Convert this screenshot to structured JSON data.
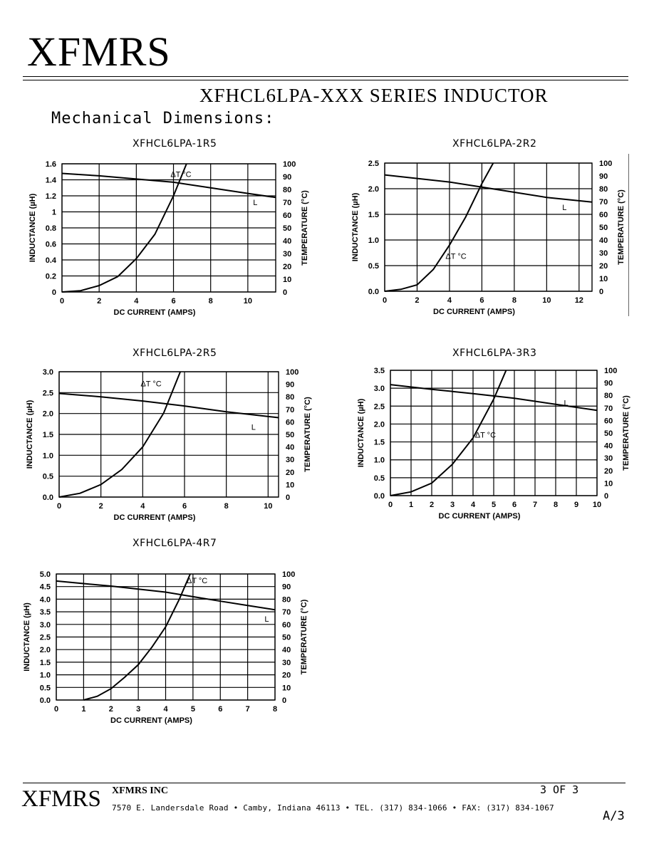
{
  "header": {
    "logo": "XFMRS",
    "series_title": "XFHCL6LPA-XXX SERIES INDUCTOR",
    "section_title": "Mechanical Dimensions:"
  },
  "footer": {
    "logo": "XFMRS",
    "company": "XFMRS INC",
    "address": "7570 E. Landersdale Road • Camby, Indiana 46113 • TEL. (317) 834-1066 • FAX: (317) 834-1067",
    "page": "3 OF 3",
    "revision": "A/3"
  },
  "chart_data": [
    {
      "type": "line",
      "title": "XFHCL6LPA-1R5",
      "xlabel": "DC CURRENT (AMPS)",
      "ylabel": "INDUCTANCE (µH)",
      "y2label": "TEMPERATURE (°C)",
      "xlim": [
        0,
        11.5
      ],
      "ylim": [
        0,
        1.6
      ],
      "y2lim": [
        0,
        100
      ],
      "xticks": [
        0,
        2,
        4,
        6,
        8,
        10
      ],
      "xtick_labels": [
        "0",
        "2",
        "4",
        "6",
        "8",
        "10"
      ],
      "yticks": [
        0,
        0.2,
        0.4,
        0.6,
        0.8,
        1,
        1.2,
        1.4,
        1.6
      ],
      "ytick_labels": [
        "0",
        "0.2",
        "0.4",
        "0.6",
        "0.8",
        "1",
        "1.2",
        "1.4",
        "1.6"
      ],
      "y2ticks": [
        0,
        10,
        20,
        30,
        40,
        50,
        60,
        70,
        80,
        90,
        100
      ],
      "y2tick_labels": [
        "0",
        "10",
        "20",
        "30",
        "40",
        "50",
        "60",
        "70",
        "80",
        "90",
        "100"
      ],
      "grid": true,
      "series": [
        {
          "name": "L",
          "axis": "left",
          "x": [
            0,
            2,
            4,
            6,
            8,
            10,
            11.5
          ],
          "y": [
            1.48,
            1.45,
            1.41,
            1.37,
            1.3,
            1.23,
            1.18
          ]
        },
        {
          "name": "ΔT °C",
          "axis": "right",
          "x": [
            0,
            1,
            2,
            3,
            4,
            5,
            6,
            6.7
          ],
          "y": [
            0,
            1,
            5,
            12,
            26,
            45,
            75,
            100
          ]
        }
      ],
      "labels": [
        {
          "text": "ΔT °C",
          "x": 6.4,
          "y2": 92
        },
        {
          "text": "L",
          "x": 10.4,
          "y": 1.12
        }
      ]
    },
    {
      "type": "line",
      "title": "XFHCL6LPA-2R2",
      "xlabel": "DC CURRENT (AMPS)",
      "ylabel": "INDUCTANCE (µH)",
      "y2label": "TEMPERATURE (°C)",
      "xlim": [
        0,
        12.8
      ],
      "ylim": [
        0,
        2.5
      ],
      "y2lim": [
        0,
        100
      ],
      "xticks": [
        0,
        2,
        4,
        6,
        8,
        10,
        12
      ],
      "xtick_labels": [
        "0",
        "2",
        "4",
        "6",
        "8",
        "10",
        "12"
      ],
      "yticks": [
        0,
        0.5,
        1.0,
        1.5,
        2.0,
        2.5
      ],
      "ytick_labels": [
        "0.0",
        "0.5",
        "1.0",
        "1.5",
        "2.0",
        "2.5"
      ],
      "y2ticks": [
        0,
        10,
        20,
        30,
        40,
        50,
        60,
        70,
        80,
        90,
        100
      ],
      "y2tick_labels": [
        "0",
        "10",
        "20",
        "30",
        "40",
        "50",
        "60",
        "70",
        "80",
        "90",
        "100"
      ],
      "grid": true,
      "series": [
        {
          "name": "L",
          "axis": "left",
          "x": [
            0,
            2,
            4,
            6,
            8,
            10,
            12.8
          ],
          "y": [
            2.27,
            2.2,
            2.13,
            2.03,
            1.93,
            1.83,
            1.74
          ]
        },
        {
          "name": "ΔT °C",
          "axis": "right",
          "x": [
            0,
            1,
            2,
            3,
            4,
            5,
            6,
            6.7
          ],
          "y": [
            0,
            1.5,
            5,
            17,
            36,
            58,
            84,
            100
          ]
        }
      ],
      "labels": [
        {
          "text": "ΔT °C",
          "x": 4.4,
          "y": 0.69
        },
        {
          "text": "L",
          "x": 11.1,
          "y": 1.64
        }
      ]
    },
    {
      "type": "line",
      "title": "XFHCL6LPA-2R5",
      "xlabel": "DC CURRENT (AMPS)",
      "ylabel": "INDUCTANCE (µH)",
      "y2label": "TEMPERATURE (°C)",
      "xlim": [
        0,
        10.5
      ],
      "ylim": [
        0,
        3.0
      ],
      "y2lim": [
        0,
        100
      ],
      "xticks": [
        0,
        2,
        4,
        6,
        8,
        10
      ],
      "xtick_labels": [
        "0",
        "2",
        "4",
        "6",
        "8",
        "10"
      ],
      "yticks": [
        0,
        0.5,
        1.0,
        1.5,
        2.0,
        2.5,
        3.0
      ],
      "ytick_labels": [
        "0.0",
        "0.5",
        "1.0",
        "1.5",
        "2.0",
        "2.5",
        "3.0"
      ],
      "y2ticks": [
        0,
        10,
        20,
        30,
        40,
        50,
        60,
        70,
        80,
        90,
        100
      ],
      "y2tick_labels": [
        "0",
        "10",
        "20",
        "30",
        "40",
        "50",
        "60",
        "70",
        "80",
        "90",
        "100"
      ],
      "grid": true,
      "series": [
        {
          "name": "L",
          "axis": "left",
          "x": [
            0,
            2,
            4,
            6,
            8,
            10.5
          ],
          "y": [
            2.48,
            2.4,
            2.3,
            2.18,
            2.04,
            1.9
          ]
        },
        {
          "name": "ΔT °C",
          "axis": "right",
          "x": [
            0,
            1,
            2,
            3,
            4,
            5,
            5.8
          ],
          "y": [
            0,
            3,
            10,
            22,
            40,
            67,
            100
          ]
        }
      ],
      "labels": [
        {
          "text": "ΔT °C",
          "x": 4.4,
          "y": 2.72
        },
        {
          "text": "L",
          "x": 9.3,
          "y": 1.68
        }
      ]
    },
    {
      "type": "line",
      "title": "XFHCL6LPA-3R3",
      "xlabel": "DC CURRENT (AMPS)",
      "ylabel": "INDUCTANCE (µH)",
      "y2label": "TEMPERATURE (°C)",
      "xlim": [
        0,
        10
      ],
      "ylim": [
        0,
        3.5
      ],
      "y2lim": [
        0,
        100
      ],
      "xticks": [
        0,
        1,
        2,
        3,
        4,
        5,
        6,
        7,
        8,
        9,
        10
      ],
      "xtick_labels": [
        "0",
        "1",
        "2",
        "3",
        "4",
        "5",
        "6",
        "7",
        "8",
        "9",
        "10"
      ],
      "yticks": [
        0,
        0.5,
        1.0,
        1.5,
        2.0,
        2.5,
        3.0,
        3.5
      ],
      "ytick_labels": [
        "0.0",
        "0.5",
        "1.0",
        "1.5",
        "2.0",
        "2.5",
        "3.0",
        "3.5"
      ],
      "y2ticks": [
        0,
        10,
        20,
        30,
        40,
        50,
        60,
        70,
        80,
        90,
        100
      ],
      "y2tick_labels": [
        "0",
        "10",
        "20",
        "30",
        "40",
        "50",
        "60",
        "70",
        "80",
        "90",
        "100"
      ],
      "grid": true,
      "series": [
        {
          "name": "L",
          "axis": "left",
          "x": [
            0,
            2,
            4,
            6,
            8,
            10
          ],
          "y": [
            3.1,
            2.97,
            2.85,
            2.72,
            2.55,
            2.38
          ]
        },
        {
          "name": "ΔT °C",
          "axis": "right",
          "x": [
            0,
            1,
            2,
            3,
            4,
            5,
            5.6
          ],
          "y": [
            0,
            3,
            10,
            25,
            46,
            77,
            100
          ]
        }
      ],
      "labels": [
        {
          "text": "ΔT °C",
          "x": 4.6,
          "y": 1.7
        },
        {
          "text": "L",
          "x": 8.5,
          "y": 2.6
        }
      ]
    },
    {
      "type": "line",
      "title": "XFHCL6LPA-4R7",
      "xlabel": "DC CURRENT (AMPS)",
      "ylabel": "INDUCTANCE (µH)",
      "y2label": "TEMPERATURE (°C)",
      "xlim": [
        0,
        8
      ],
      "ylim": [
        0,
        5.0
      ],
      "y2lim": [
        0,
        100
      ],
      "xticks": [
        0,
        1,
        2,
        3,
        4,
        5,
        6,
        7,
        8
      ],
      "xtick_labels": [
        "0",
        "1",
        "2",
        "3",
        "4",
        "5",
        "6",
        "7",
        "8"
      ],
      "yticks": [
        0,
        0.5,
        1.0,
        1.5,
        2.0,
        2.5,
        3.0,
        3.5,
        4.0,
        4.5,
        5.0
      ],
      "ytick_labels": [
        "0.0",
        "0.5",
        "1.0",
        "1.5",
        "2.0",
        "2.5",
        "3.0",
        "3.5",
        "4.0",
        "4.5",
        "5.0"
      ],
      "y2ticks": [
        0,
        10,
        20,
        30,
        40,
        50,
        60,
        70,
        80,
        90,
        100
      ],
      "y2tick_labels": [
        "0",
        "10",
        "20",
        "30",
        "40",
        "50",
        "60",
        "70",
        "80",
        "90",
        "100"
      ],
      "grid": true,
      "series": [
        {
          "name": "L",
          "axis": "left",
          "x": [
            0,
            1,
            2,
            3,
            4,
            5,
            6,
            7,
            8
          ],
          "y": [
            4.72,
            4.62,
            4.52,
            4.4,
            4.28,
            4.1,
            3.92,
            3.75,
            3.58
          ]
        },
        {
          "name": "ΔT °C",
          "axis": "right",
          "x": [
            1,
            1.5,
            2,
            2.5,
            3,
            3.5,
            4,
            4.5,
            4.9
          ],
          "y": [
            0,
            3,
            9,
            18,
            28,
            42,
            58,
            80,
            100
          ]
        }
      ],
      "labels": [
        {
          "text": "ΔT °C",
          "x": 5.15,
          "y": 4.74
        },
        {
          "text": "L",
          "x": 7.7,
          "y": 3.22
        }
      ]
    }
  ]
}
